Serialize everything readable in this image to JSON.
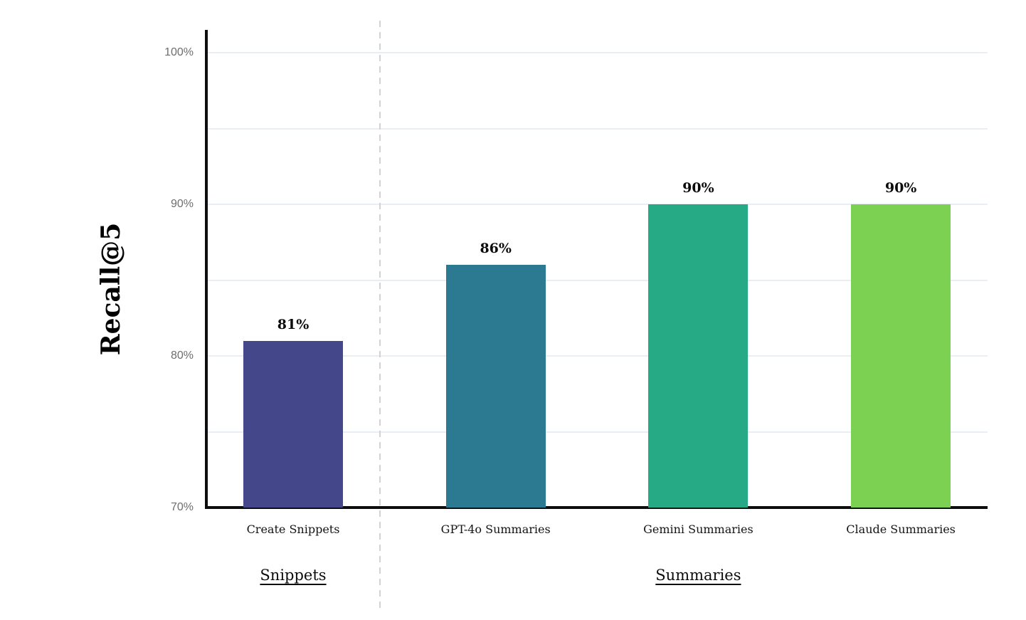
{
  "chart_data": {
    "type": "bar",
    "title": "",
    "ylabel": "Recall@5",
    "xlabel": "",
    "categories": [
      "Create Snippets",
      "GPT-4o Summaries",
      "Gemini Summaries",
      "Claude Summaries"
    ],
    "values": [
      81,
      86,
      90,
      90
    ],
    "value_labels": [
      "81%",
      "86%",
      "90%",
      "90%"
    ],
    "bar_colors": [
      "#44478a",
      "#2b7a92",
      "#26aa86",
      "#7cd052"
    ],
    "ylim": [
      70,
      100
    ],
    "y_ticks": [
      {
        "value": 70,
        "label": "70%"
      },
      {
        "value": 80,
        "label": "80%"
      },
      {
        "value": 90,
        "label": "90%"
      },
      {
        "value": 100,
        "label": "100%"
      }
    ],
    "gridline_step": 5,
    "grid": true,
    "legend": "none",
    "groups": [
      {
        "label": "Snippets",
        "bar_indices": [
          0
        ]
      },
      {
        "label": "Summaries",
        "bar_indices": [
          1,
          2,
          3
        ]
      }
    ],
    "separator_note": "dashed vertical line between Snippets and Summaries groups"
  },
  "style_colors": {
    "background": "#ffffff",
    "grid_line": "#e9eef4",
    "axis_line": "#0d0d0d",
    "tick_text": "#6e6e6e",
    "separator_line": "#d2d2d2",
    "label_text": "#0c0c0c"
  }
}
